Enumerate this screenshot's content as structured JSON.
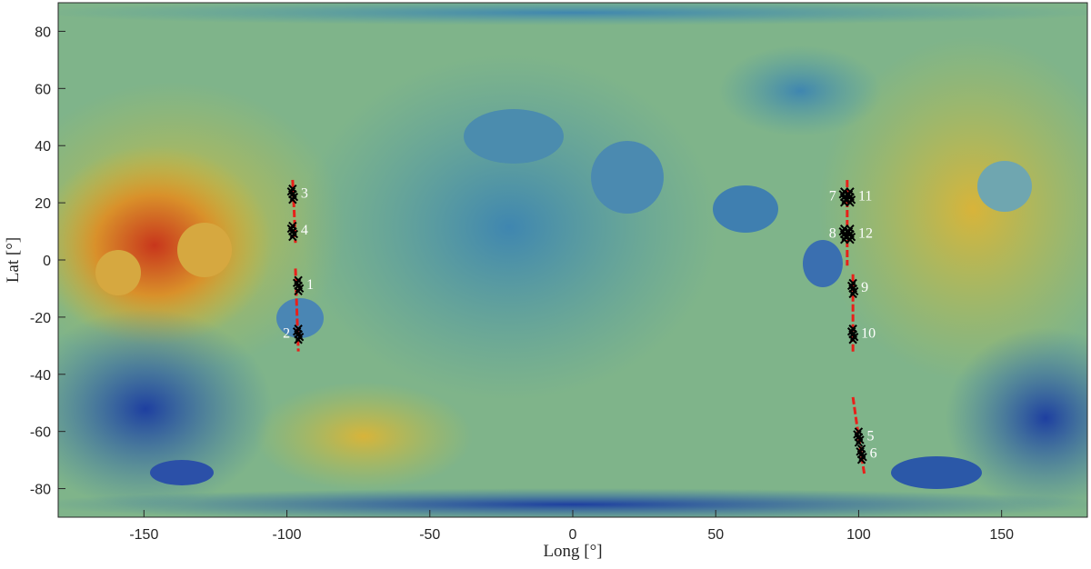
{
  "chart_data": {
    "type": "scatter",
    "x_label": "Long [°]",
    "y_label": "Lat [°]",
    "xlim": [
      -180,
      180
    ],
    "ylim": [
      -90,
      90
    ],
    "xticks": [
      -150,
      -100,
      -50,
      0,
      50,
      100,
      150
    ],
    "yticks": [
      -80,
      -60,
      -40,
      -20,
      0,
      20,
      40,
      60,
      80
    ],
    "tracks": [
      {
        "color": "#e8201a",
        "x": [
          -98,
          -97.5,
          -97
        ],
        "values": [
          28,
          18,
          6
        ]
      },
      {
        "color": "#e8201a",
        "x": [
          -97,
          -96.5,
          -96
        ],
        "values": [
          -3,
          -18,
          -32
        ]
      },
      {
        "color": "#e8201a",
        "x": [
          96,
          96,
          96
        ],
        "values": [
          28,
          12,
          -2
        ]
      },
      {
        "color": "#e8201a",
        "x": [
          98,
          98,
          98
        ],
        "values": [
          -5,
          -20,
          -33
        ]
      },
      {
        "color": "#e8201a",
        "x": [
          98,
          100,
          102
        ],
        "values": [
          -48,
          -62,
          -75
        ]
      }
    ],
    "sites": {
      "color": "#000000",
      "labels": [
        "1",
        "2",
        "3",
        "4",
        "5",
        "6",
        "7",
        "8",
        "9",
        "10",
        "11",
        "12"
      ],
      "x": [
        -96,
        -96,
        -98,
        -98,
        100,
        101,
        95,
        95,
        98,
        98,
        97,
        97
      ],
      "values": [
        -9,
        -26,
        23,
        10,
        -62,
        -68,
        22,
        9,
        -10,
        -26,
        22,
        9
      ]
    }
  }
}
